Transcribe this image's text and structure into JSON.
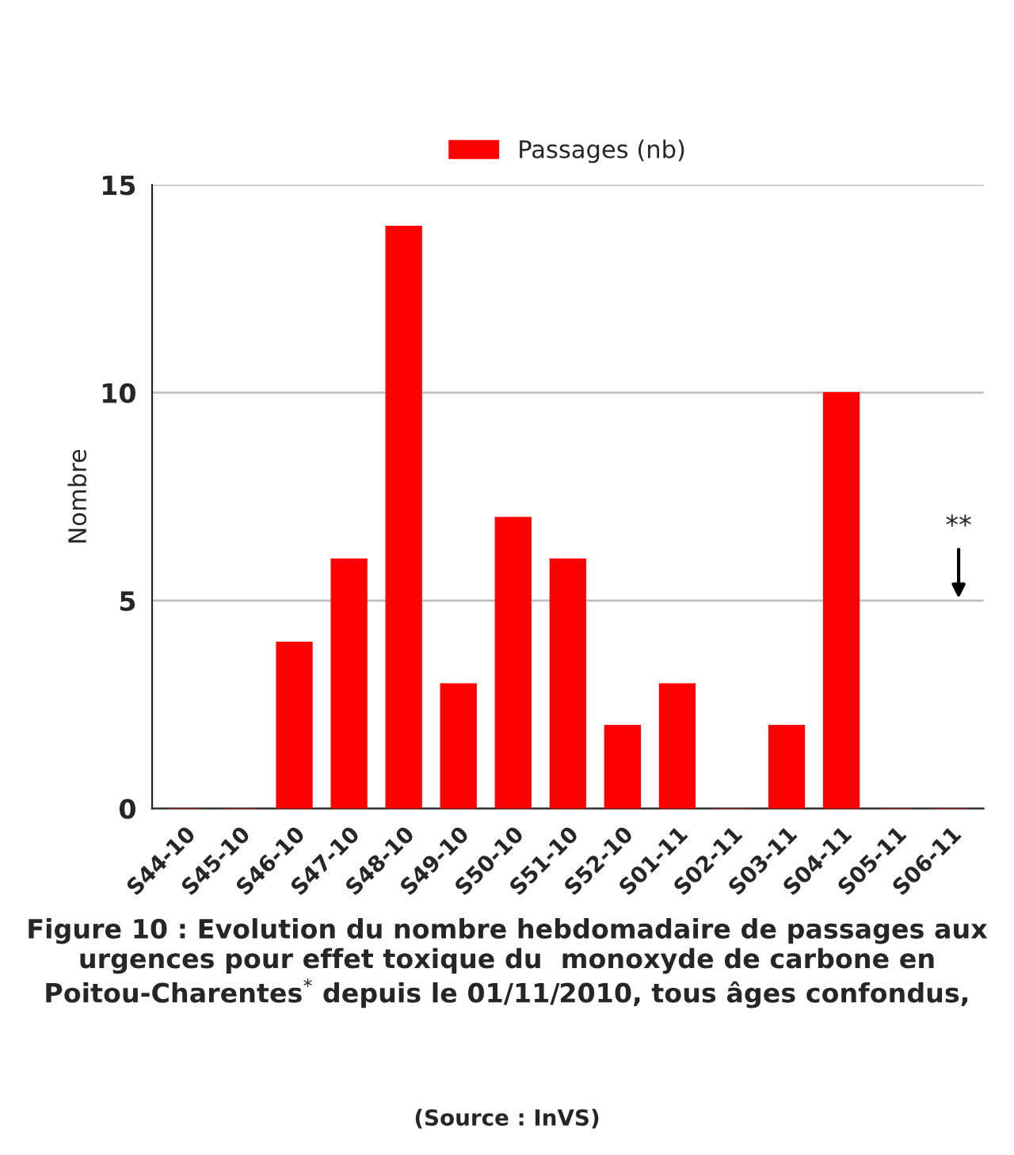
{
  "chart_data": {
    "type": "bar",
    "categories": [
      "S44-10",
      "S45-10",
      "S46-10",
      "S47-10",
      "S48-10",
      "S49-10",
      "S50-10",
      "S51-10",
      "S52-10",
      "S01-11",
      "S02-11",
      "S03-11",
      "S04-11",
      "S05-11",
      "S06-11"
    ],
    "series": [
      {
        "name": "Passages (nb)",
        "color": "#ff0000",
        "values": [
          0,
          0,
          4,
          6,
          14,
          3,
          7,
          6,
          2,
          3,
          0,
          2,
          10,
          0,
          0
        ]
      }
    ],
    "ylabel": "Nombre",
    "ylim": [
      0,
      15
    ],
    "yticks": [
      0,
      5,
      10,
      15
    ],
    "grid": "y",
    "legend": "top",
    "annotations": [
      "**",
      "Figure 10 : Evolution du nombre hebdomadaire de passages aux urgences pour effet toxique du  monoxyde de carbone en Poitou-Charentes$^{*}$ depuis le 01/11/2010, tous âges confondus,",
      "(Source : InVS)"
    ]
  }
}
